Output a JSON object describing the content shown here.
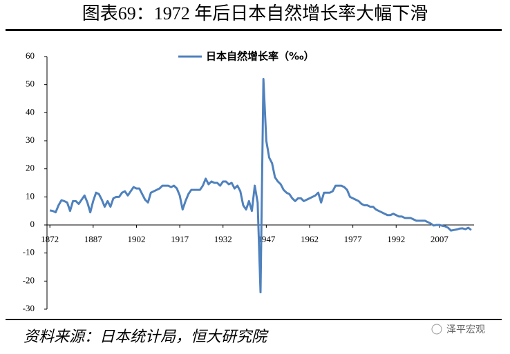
{
  "title": "图表69：1972 年后日本自然增长率大幅下滑",
  "source": "资料来源：日本统计局，恒大研究院",
  "watermark": "泽平宏观",
  "chart_data": {
    "type": "line",
    "x": [
      1872,
      1873,
      1874,
      1875,
      1876,
      1877,
      1878,
      1879,
      1880,
      1881,
      1882,
      1883,
      1884,
      1885,
      1886,
      1887,
      1888,
      1889,
      1890,
      1891,
      1892,
      1893,
      1894,
      1895,
      1896,
      1897,
      1898,
      1899,
      1900,
      1901,
      1902,
      1903,
      1904,
      1905,
      1906,
      1907,
      1908,
      1909,
      1910,
      1911,
      1912,
      1913,
      1914,
      1915,
      1916,
      1917,
      1918,
      1919,
      1920,
      1921,
      1922,
      1923,
      1924,
      1925,
      1926,
      1927,
      1928,
      1929,
      1930,
      1931,
      1932,
      1933,
      1934,
      1935,
      1936,
      1937,
      1938,
      1939,
      1940,
      1941,
      1942,
      1943,
      1944,
      1945,
      1946,
      1947,
      1948,
      1949,
      1950,
      1951,
      1952,
      1953,
      1954,
      1955,
      1956,
      1957,
      1958,
      1959,
      1960,
      1961,
      1962,
      1963,
      1964,
      1965,
      1966,
      1967,
      1968,
      1969,
      1970,
      1971,
      1972,
      1973,
      1974,
      1975,
      1976,
      1977,
      1978,
      1979,
      1980,
      1981,
      1982,
      1983,
      1984,
      1985,
      1986,
      1987,
      1988,
      1989,
      1990,
      1991,
      1992,
      1993,
      1994,
      1995,
      1996,
      1997,
      1998,
      1999,
      2000,
      2001,
      2002,
      2003,
      2004,
      2005,
      2006,
      2007,
      2008,
      2009,
      2010,
      2011,
      2012,
      2013,
      2014,
      2015,
      2016,
      2017,
      2018
    ],
    "series": [
      {
        "name": "日本自然增长率（‰）",
        "color": "#4f81bd",
        "values": [
          5.2,
          5,
          4.5,
          7,
          8.8,
          8.5,
          8,
          5,
          8.5,
          8.5,
          7.5,
          9,
          10.5,
          8,
          4.5,
          8.5,
          11.5,
          11,
          9,
          6.5,
          8.5,
          6.5,
          9.5,
          10,
          10,
          11.5,
          12,
          10.5,
          12,
          13.5,
          13,
          13,
          11,
          9,
          8,
          11.5,
          12,
          12.5,
          13,
          14,
          14,
          14,
          13.5,
          14,
          13,
          10.5,
          5.5,
          8.5,
          11,
          12.5,
          12.5,
          12.5,
          12.5,
          14,
          16.5,
          14.5,
          15.5,
          15,
          15,
          14,
          15.5,
          15.5,
          14.5,
          15,
          13,
          14,
          12,
          7,
          5.5,
          8.5,
          5,
          14,
          8,
          -24,
          52,
          30,
          24,
          22,
          17,
          15.5,
          14.5,
          12.5,
          11.5,
          11,
          9.5,
          8.5,
          9.5,
          9.5,
          8.5,
          9,
          9.5,
          10,
          10.5,
          11.5,
          8,
          11.5,
          11.5,
          11.5,
          12,
          14,
          14,
          14,
          13.5,
          12.5,
          10,
          9.5,
          9,
          8.5,
          7.5,
          7,
          7,
          6.5,
          6.5,
          5.5,
          5,
          4.5,
          4,
          3.5,
          3.5,
          4,
          3.5,
          3,
          3,
          2.5,
          2.5,
          2.5,
          2,
          1.5,
          1.5,
          1.5,
          1.5,
          1,
          0.5,
          -0.2,
          0,
          0,
          -0.3,
          -0.5,
          -1,
          -2,
          -1.8,
          -1.6,
          -1.3,
          -1.2,
          -1.5,
          -1,
          -1.8
        ]
      }
    ],
    "xlim": [
      1871,
      2019
    ],
    "xticks": [
      1872,
      1887,
      1902,
      1917,
      1932,
      1947,
      1962,
      1977,
      1992,
      2007
    ],
    "ylim": [
      -30,
      60
    ],
    "yticks": [
      -30,
      -20,
      -10,
      0,
      10,
      20,
      30,
      40,
      50,
      60
    ],
    "legend": "top"
  }
}
